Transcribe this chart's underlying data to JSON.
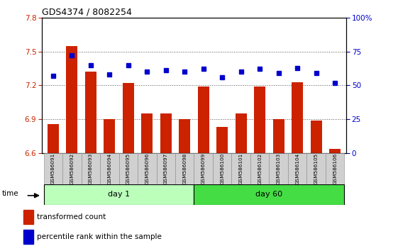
{
  "title": "GDS4374 / 8082254",
  "categories": [
    "GSM586091",
    "GSM586092",
    "GSM586093",
    "GSM586094",
    "GSM586095",
    "GSM586096",
    "GSM586097",
    "GSM586098",
    "GSM586099",
    "GSM586100",
    "GSM586101",
    "GSM586102",
    "GSM586103",
    "GSM586104",
    "GSM586105",
    "GSM586106"
  ],
  "bar_values": [
    6.86,
    7.55,
    7.32,
    6.9,
    7.22,
    6.95,
    6.95,
    6.9,
    7.19,
    6.83,
    6.95,
    7.19,
    6.9,
    7.23,
    6.89,
    6.64
  ],
  "percentile_values": [
    57,
    72,
    65,
    58,
    65,
    60,
    61,
    60,
    62,
    56,
    60,
    62,
    59,
    63,
    59,
    52
  ],
  "ylim_left": [
    6.6,
    7.8
  ],
  "ylim_right": [
    0,
    100
  ],
  "yticks_left": [
    6.6,
    6.9,
    7.2,
    7.5,
    7.8
  ],
  "yticks_right": [
    0,
    25,
    50,
    75,
    100
  ],
  "bar_color": "#cc2200",
  "marker_color": "#0000cc",
  "plot_bg_color": "#ffffff",
  "day1_color": "#bbffbb",
  "day60_color": "#44dd44",
  "day1_label": "day 1",
  "day60_label": "day 60",
  "day1_indices": [
    0,
    7
  ],
  "day60_indices": [
    8,
    15
  ],
  "legend_bar_label": "transformed count",
  "legend_marker_label": "percentile rank within the sample",
  "time_label": "time",
  "label_box_color": "#d0d0d0",
  "right_ytick_color": "#0000cc",
  "left_ytick_color": "#cc2200"
}
